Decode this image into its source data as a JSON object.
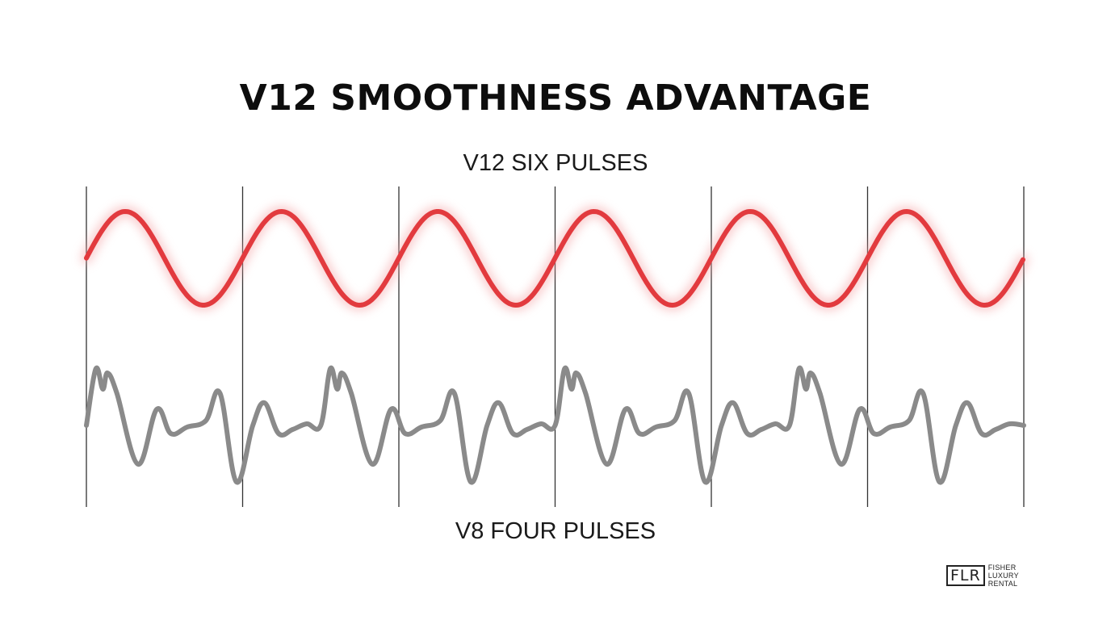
{
  "title": "V12 SMOOTHNESS ADVANTAGE",
  "top_label": "V12 SIX PULSES",
  "bottom_label": "V8 FOUR PULSES",
  "logo": {
    "mark": "FLR",
    "line1": "FISHER",
    "line2": "LUXURY",
    "line3": "RENTAL"
  },
  "colors": {
    "v12_wave": "#e23a3e",
    "v12_glow": "#f4a3a5",
    "v8_wave": "#8a8a8a",
    "divider": "#333333"
  },
  "segments": 6
}
